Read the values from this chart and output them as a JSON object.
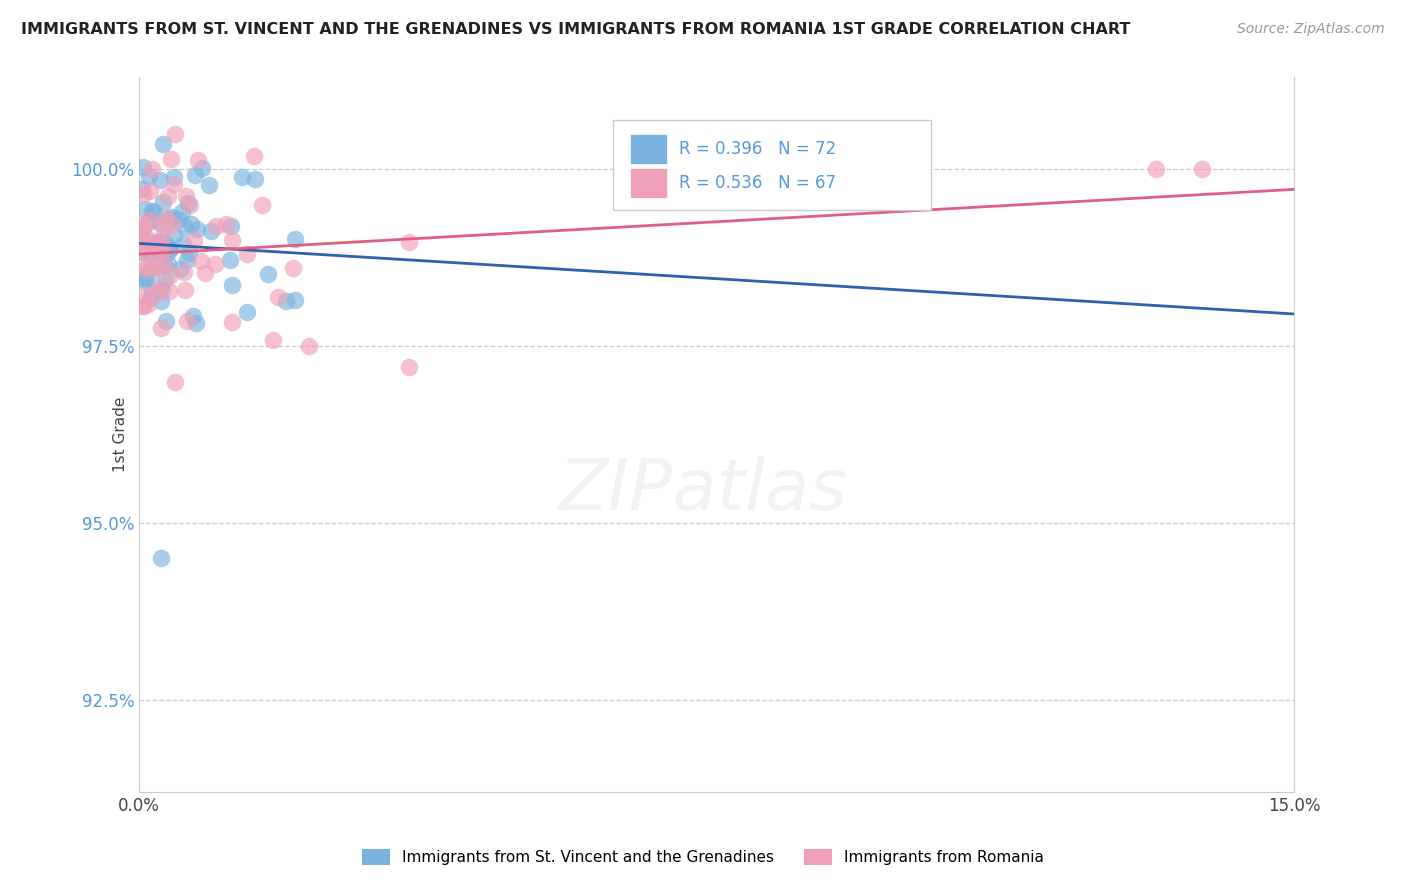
{
  "title": "IMMIGRANTS FROM ST. VINCENT AND THE GRENADINES VS IMMIGRANTS FROM ROMANIA 1ST GRADE CORRELATION CHART",
  "source": "Source: ZipAtlas.com",
  "ylabel": "1st Grade",
  "xlim": [
    0.0,
    15.0
  ],
  "ylim": [
    91.2,
    101.3
  ],
  "yticks": [
    92.5,
    95.0,
    97.5,
    100.0
  ],
  "xtick_labels": [
    "0.0%",
    "15.0%"
  ],
  "ytick_labels": [
    "92.5%",
    "95.0%",
    "97.5%",
    "100.0%"
  ],
  "legend1_label": "Immigrants from St. Vincent and the Grenadines",
  "legend2_label": "Immigrants from Romania",
  "R1": 0.396,
  "N1": 72,
  "R2": 0.536,
  "N2": 67,
  "color1": "#7ab3e0",
  "color2": "#f0a0b8",
  "trendline1_color": "#3060b0",
  "trendline2_color": "#e06080",
  "tick_color": "#5599dd",
  "title_color": "#222222",
  "source_color": "#999999"
}
